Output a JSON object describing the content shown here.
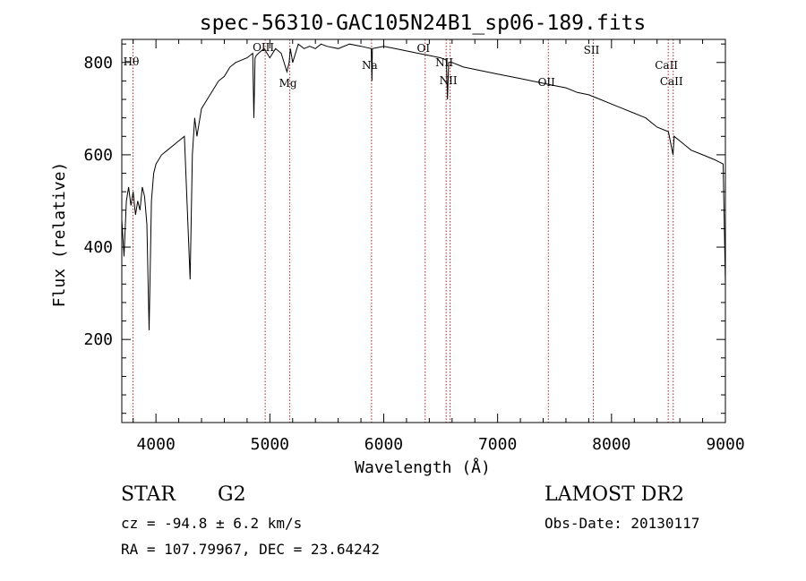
{
  "chart_data": {
    "type": "line",
    "title": "spec-56310-GAC105N24B1_sp06-189.fits",
    "xlabel": "Wavelength (Å)",
    "ylabel": "Flux (relative)",
    "xlim": [
      3700,
      9000
    ],
    "ylim": [
      20,
      850
    ],
    "x_ticks": [
      4000,
      5000,
      6000,
      7000,
      8000,
      9000
    ],
    "y_ticks": [
      200,
      400,
      600,
      800
    ],
    "grid": false,
    "legend": "none",
    "line_color": "#000000",
    "marker_color": "#b22222",
    "spectral_lines": [
      {
        "name": "Hθ",
        "wavelength": 3798
      },
      {
        "name": "OIII",
        "wavelength": 4959
      },
      {
        "name": "Mg",
        "wavelength": 5175
      },
      {
        "name": "Na",
        "wavelength": 5893
      },
      {
        "name": "OI",
        "wavelength": 6364
      },
      {
        "name": "NII",
        "wavelength": 6548
      },
      {
        "name": "NII",
        "wavelength": 6583
      },
      {
        "name": "OII",
        "wavelength": 7445
      },
      {
        "name": "SII",
        "wavelength": 7840
      },
      {
        "name": "CaII",
        "wavelength": 8498
      },
      {
        "name": "CaII",
        "wavelength": 8542
      }
    ],
    "series": [
      {
        "x": [
          3700,
          3720,
          3740,
          3760,
          3780,
          3800,
          3820,
          3840,
          3860,
          3880,
          3900,
          3920,
          3940,
          3960,
          3980,
          4000,
          4050,
          4100,
          4150,
          4200,
          4250,
          4300,
          4320,
          4340,
          4360,
          4400,
          4450,
          4500,
          4550,
          4600,
          4650,
          4700,
          4750,
          4800,
          4850,
          4860,
          4870,
          4880,
          4900,
          4950,
          5000,
          5050,
          5100,
          5150,
          5170,
          5180,
          5200,
          5250,
          5300,
          5350,
          5400,
          5450,
          5500,
          5600,
          5700,
          5800,
          5890,
          5896,
          5900,
          6000,
          6100,
          6200,
          6300,
          6400,
          6500,
          6550,
          6560,
          6570,
          6600,
          6700,
          6800,
          6900,
          7000,
          7100,
          7200,
          7300,
          7400,
          7500,
          7600,
          7700,
          7800,
          7900,
          8000,
          8100,
          8200,
          8300,
          8400,
          8500,
          8540,
          8550,
          8600,
          8650,
          8700,
          8800,
          8900,
          8980,
          9000
        ],
        "y": [
          460,
          380,
          500,
          530,
          490,
          520,
          470,
          500,
          480,
          530,
          510,
          450,
          220,
          500,
          560,
          580,
          600,
          610,
          620,
          630,
          640,
          330,
          600,
          680,
          640,
          700,
          720,
          740,
          760,
          770,
          790,
          800,
          805,
          810,
          820,
          680,
          810,
          815,
          820,
          830,
          810,
          830,
          820,
          780,
          800,
          830,
          800,
          840,
          830,
          835,
          830,
          840,
          835,
          830,
          840,
          835,
          830,
          760,
          830,
          835,
          830,
          825,
          820,
          815,
          810,
          805,
          720,
          800,
          800,
          790,
          785,
          780,
          775,
          770,
          765,
          760,
          755,
          750,
          745,
          735,
          730,
          720,
          710,
          700,
          690,
          680,
          660,
          650,
          600,
          640,
          630,
          620,
          610,
          600,
          590,
          580,
          320
        ]
      }
    ]
  },
  "info": {
    "object_type": "STAR",
    "subclass": "G2",
    "survey": "LAMOST DR2",
    "cz": "cz = -94.8 ± 6.2 km/s",
    "obs_date": "Obs-Date: 20130117",
    "coords": "RA = 107.79967, DEC =  23.64242"
  }
}
